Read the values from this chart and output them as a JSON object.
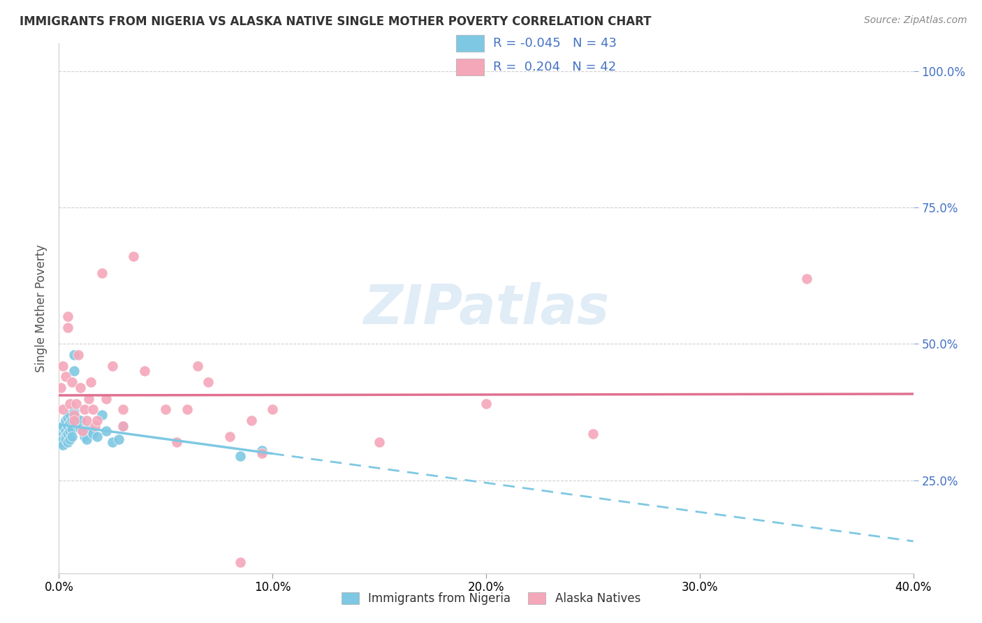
{
  "title": "IMMIGRANTS FROM NIGERIA VS ALASKA NATIVE SINGLE MOTHER POVERTY CORRELATION CHART",
  "source": "Source: ZipAtlas.com",
  "xlabel_blue": "Immigrants from Nigeria",
  "xlabel_pink": "Alaska Natives",
  "ylabel": "Single Mother Poverty",
  "xmin": 0.0,
  "xmax": 0.4,
  "ymin": 0.08,
  "ymax": 1.05,
  "right_yticks": [
    0.25,
    0.5,
    0.75,
    1.0
  ],
  "right_yticklabels": [
    "25.0%",
    "50.0%",
    "75.0%",
    "100.0%"
  ],
  "xticks": [
    0.0,
    0.1,
    0.2,
    0.3,
    0.4
  ],
  "xticklabels": [
    "0.0%",
    "10.0%",
    "20.0%",
    "30.0%",
    "40.0%"
  ],
  "legend_r_blue": "-0.045",
  "legend_n_blue": "43",
  "legend_r_pink": "0.204",
  "legend_n_pink": "42",
  "blue_color": "#7ec8e3",
  "pink_color": "#f4a7b9",
  "blue_trend_solid_end": 0.1,
  "blue_scatter": [
    [
      0.001,
      0.345
    ],
    [
      0.001,
      0.33
    ],
    [
      0.001,
      0.32
    ],
    [
      0.002,
      0.35
    ],
    [
      0.002,
      0.325
    ],
    [
      0.002,
      0.315
    ],
    [
      0.003,
      0.36
    ],
    [
      0.003,
      0.34
    ],
    [
      0.003,
      0.33
    ],
    [
      0.003,
      0.325
    ],
    [
      0.004,
      0.365
    ],
    [
      0.004,
      0.35
    ],
    [
      0.004,
      0.335
    ],
    [
      0.004,
      0.32
    ],
    [
      0.005,
      0.37
    ],
    [
      0.005,
      0.355
    ],
    [
      0.005,
      0.34
    ],
    [
      0.005,
      0.325
    ],
    [
      0.006,
      0.36
    ],
    [
      0.006,
      0.345
    ],
    [
      0.006,
      0.33
    ],
    [
      0.007,
      0.48
    ],
    [
      0.007,
      0.45
    ],
    [
      0.007,
      0.375
    ],
    [
      0.008,
      0.365
    ],
    [
      0.008,
      0.355
    ],
    [
      0.009,
      0.35
    ],
    [
      0.01,
      0.36
    ],
    [
      0.01,
      0.345
    ],
    [
      0.011,
      0.34
    ],
    [
      0.012,
      0.33
    ],
    [
      0.013,
      0.345
    ],
    [
      0.013,
      0.325
    ],
    [
      0.015,
      0.34
    ],
    [
      0.016,
      0.335
    ],
    [
      0.018,
      0.33
    ],
    [
      0.02,
      0.37
    ],
    [
      0.022,
      0.34
    ],
    [
      0.025,
      0.32
    ],
    [
      0.028,
      0.325
    ],
    [
      0.03,
      0.35
    ],
    [
      0.085,
      0.295
    ],
    [
      0.095,
      0.305
    ]
  ],
  "pink_scatter": [
    [
      0.001,
      0.42
    ],
    [
      0.002,
      0.46
    ],
    [
      0.002,
      0.38
    ],
    [
      0.003,
      0.44
    ],
    [
      0.004,
      0.55
    ],
    [
      0.004,
      0.53
    ],
    [
      0.005,
      0.39
    ],
    [
      0.006,
      0.43
    ],
    [
      0.007,
      0.37
    ],
    [
      0.007,
      0.36
    ],
    [
      0.008,
      0.39
    ],
    [
      0.009,
      0.48
    ],
    [
      0.01,
      0.42
    ],
    [
      0.011,
      0.34
    ],
    [
      0.012,
      0.38
    ],
    [
      0.013,
      0.36
    ],
    [
      0.014,
      0.4
    ],
    [
      0.015,
      0.43
    ],
    [
      0.016,
      0.38
    ],
    [
      0.017,
      0.35
    ],
    [
      0.018,
      0.36
    ],
    [
      0.02,
      0.63
    ],
    [
      0.022,
      0.4
    ],
    [
      0.025,
      0.46
    ],
    [
      0.03,
      0.38
    ],
    [
      0.03,
      0.35
    ],
    [
      0.035,
      0.66
    ],
    [
      0.04,
      0.45
    ],
    [
      0.05,
      0.38
    ],
    [
      0.055,
      0.32
    ],
    [
      0.06,
      0.38
    ],
    [
      0.065,
      0.46
    ],
    [
      0.07,
      0.43
    ],
    [
      0.08,
      0.33
    ],
    [
      0.09,
      0.36
    ],
    [
      0.095,
      0.3
    ],
    [
      0.1,
      0.38
    ],
    [
      0.15,
      0.32
    ],
    [
      0.2,
      0.39
    ],
    [
      0.25,
      0.335
    ],
    [
      0.35,
      0.62
    ],
    [
      0.085,
      0.1
    ]
  ],
  "watermark": "ZIPatlas",
  "background_color": "#ffffff",
  "grid_color": "#d0d0d0"
}
